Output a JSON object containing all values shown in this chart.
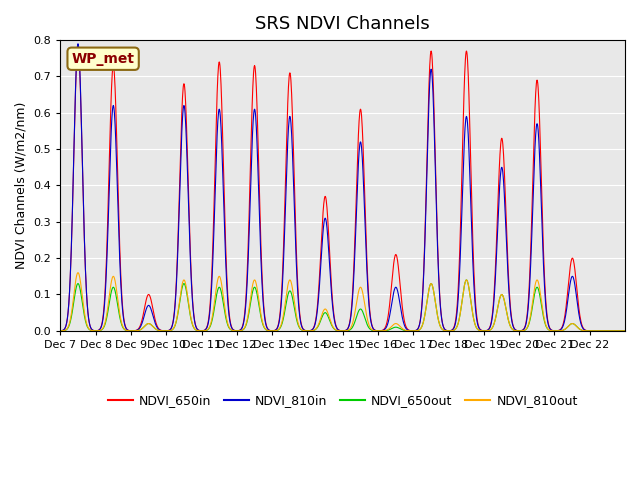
{
  "title": "SRS NDVI Channels",
  "ylabel": "NDVI Channels (W/m2/nm)",
  "annotation": "WP_met",
  "ylim": [
    0.0,
    0.8
  ],
  "yticks": [
    0.0,
    0.1,
    0.2,
    0.3,
    0.4,
    0.5,
    0.6,
    0.7,
    0.8
  ],
  "xtick_labels": [
    "Dec 7",
    "Dec 8",
    "Dec 9",
    "Dec 10",
    "Dec 11",
    "Dec 12",
    "Dec 13",
    "Dec 14",
    "Dec 15",
    "Dec 16",
    "Dec 17",
    "Dec 18",
    "Dec 19",
    "Dec 20",
    "Dec 21",
    "Dec 22"
  ],
  "colors": {
    "NDVI_650in": "#ff0000",
    "NDVI_810in": "#0000cc",
    "NDVI_650out": "#00cc00",
    "NDVI_810out": "#ffaa00"
  },
  "legend_labels": [
    "NDVI_650in",
    "NDVI_810in",
    "NDVI_650out",
    "NDVI_810out"
  ],
  "background_color": "#e8e8e8",
  "fig_background": "#ffffff",
  "peaks_650in": [
    0.78,
    0.73,
    0.1,
    0.68,
    0.74,
    0.73,
    0.71,
    0.37,
    0.61,
    0.21,
    0.77,
    0.77,
    0.53,
    0.69,
    0.2
  ],
  "peaks_810in": [
    0.79,
    0.62,
    0.07,
    0.62,
    0.61,
    0.61,
    0.59,
    0.31,
    0.52,
    0.12,
    0.72,
    0.59,
    0.45,
    0.57,
    0.15
  ],
  "peaks_650out": [
    0.13,
    0.12,
    0.02,
    0.13,
    0.12,
    0.12,
    0.11,
    0.05,
    0.06,
    0.01,
    0.13,
    0.14,
    0.1,
    0.12,
    0.02
  ],
  "peaks_810out": [
    0.16,
    0.15,
    0.02,
    0.14,
    0.15,
    0.14,
    0.14,
    0.06,
    0.12,
    0.02,
    0.13,
    0.14,
    0.1,
    0.14,
    0.02
  ],
  "n_days": 16,
  "points_per_day": 100
}
